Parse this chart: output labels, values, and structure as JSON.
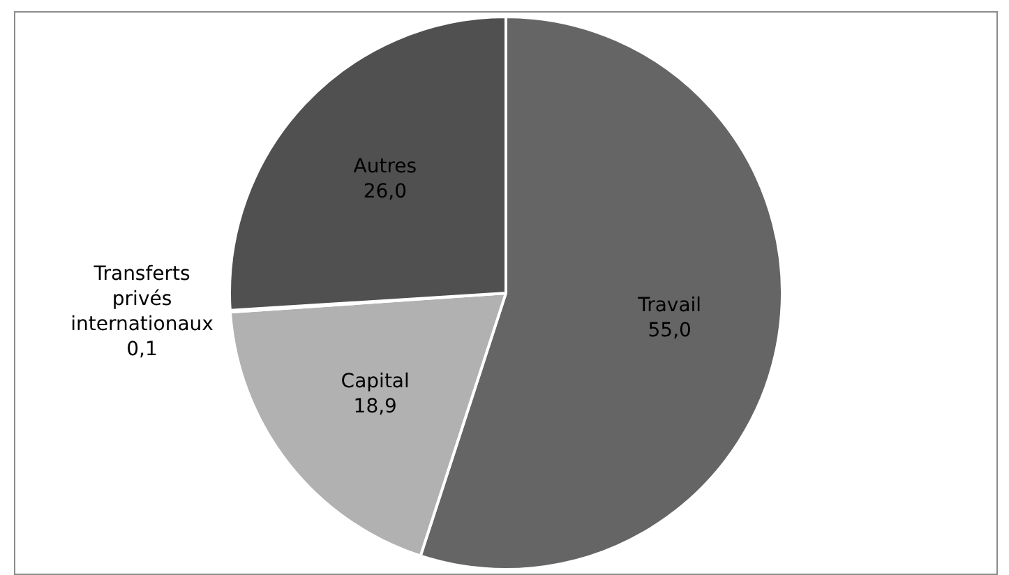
{
  "chart_data": {
    "type": "pie",
    "categories": [
      "Travail",
      "Capital",
      "Transferts privés internationaux",
      "Autres"
    ],
    "values": [
      55.0,
      18.9,
      0.1,
      26.0
    ],
    "colors": [
      "#656565",
      "#b1b1b1",
      "#8a8a8a",
      "#505050"
    ],
    "value_labels": [
      "55,0",
      "18,9",
      "0,1",
      "26,0"
    ]
  }
}
